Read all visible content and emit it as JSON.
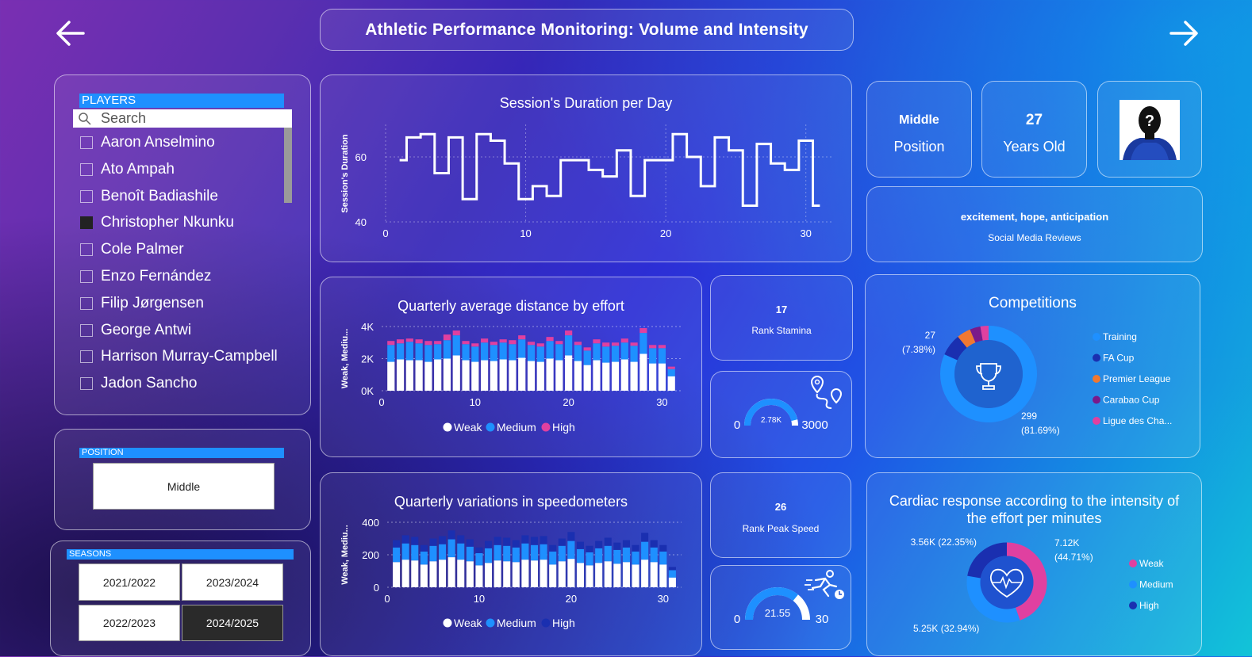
{
  "title": "Athletic Performance Monitoring: Volume and Intensity",
  "nav": {
    "back_icon": "arrow-left-icon",
    "forward_icon": "arrow-right-icon"
  },
  "players": {
    "header": "PLAYERS",
    "search_placeholder": "Search",
    "items": [
      {
        "name": "Aaron Anselmino",
        "checked": false
      },
      {
        "name": "Ato Ampah",
        "checked": false
      },
      {
        "name": "Benoît Badiashile",
        "checked": false
      },
      {
        "name": "Christopher Nkunku",
        "checked": true
      },
      {
        "name": "Cole Palmer",
        "checked": false
      },
      {
        "name": "Enzo Fernández",
        "checked": false
      },
      {
        "name": "Filip Jørgensen",
        "checked": false
      },
      {
        "name": "George Antwi",
        "checked": false
      },
      {
        "name": "Harrison Murray-Campbell",
        "checked": false
      },
      {
        "name": "Jadon Sancho",
        "checked": false
      }
    ]
  },
  "position": {
    "header": "POSITION",
    "value": "Middle"
  },
  "seasons": {
    "header": "SEASONS",
    "items": [
      "2021/2022",
      "2023/2024",
      "2022/2023",
      "2024/2025"
    ],
    "selected": "2024/2025"
  },
  "cards": {
    "position_value": "Middle",
    "position_label": "Position",
    "age_value": "27",
    "age_label": "Years Old",
    "sentiment_value": "excitement, hope, anticipation",
    "sentiment_label": "Social Media Reviews",
    "rank_stamina_value": "17",
    "rank_stamina_label": "Rank Stamina",
    "rank_speed_value": "26",
    "rank_speed_label": "Rank Peak Speed"
  },
  "gauge_stamina": {
    "min": "0",
    "max": "3000",
    "value": 2780,
    "value_label": "2.78K",
    "icon": "route-pin-icon"
  },
  "gauge_speed": {
    "min": "0",
    "max": "30",
    "value": 21.55,
    "value_label": "21.55",
    "icon": "runner-icon"
  },
  "colors": {
    "weak": "#ffffff",
    "medium": "#1e90ff",
    "high": "#e040a0",
    "high_speed": "#1a2fb0"
  },
  "chart_data": [
    {
      "type": "line",
      "title": "Session's Duration per Day",
      "ylabel": "Session's Duration",
      "xlabel": "",
      "xlim": [
        0,
        32
      ],
      "ylim": [
        40,
        70
      ],
      "xticks": [
        0,
        10,
        20,
        30
      ],
      "yticks": [
        40,
        60
      ],
      "step": true,
      "x": [
        1,
        2,
        3,
        4,
        5,
        6,
        7,
        8,
        9,
        10,
        11,
        12,
        13,
        14,
        15,
        16,
        17,
        18,
        19,
        20,
        21,
        22,
        23,
        24,
        25,
        26,
        27,
        28,
        29,
        30,
        31
      ],
      "y": [
        59,
        66,
        67,
        55,
        66,
        47,
        67,
        65,
        58,
        47,
        51,
        48,
        59,
        59,
        56,
        54,
        62,
        48,
        59,
        59,
        67,
        60,
        51,
        66,
        62,
        45,
        64,
        58,
        56,
        65,
        45
      ],
      "color": "#ffffff"
    },
    {
      "type": "bar",
      "title": "Quarterly average distance by effort",
      "ylabel": "Weak, Mediu...",
      "stacked": true,
      "xlim": [
        0,
        32
      ],
      "ylim": [
        0,
        4000
      ],
      "xticks": [
        0,
        10,
        20,
        30
      ],
      "yticks": [
        0,
        2000,
        4000
      ],
      "ytick_labels": [
        "0K",
        "2K",
        "4K"
      ],
      "legend": [
        "Weak",
        "Medium",
        "High"
      ],
      "legend_position": "bottom",
      "x": [
        1,
        2,
        3,
        4,
        5,
        6,
        7,
        8,
        9,
        10,
        11,
        12,
        13,
        14,
        15,
        16,
        17,
        18,
        19,
        20,
        21,
        22,
        23,
        24,
        25,
        26,
        27,
        28,
        29,
        30,
        31
      ],
      "series": [
        {
          "name": "Weak",
          "color": "#ffffff",
          "values": [
            1800,
            1950,
            1900,
            1900,
            1800,
            1950,
            2000,
            2200,
            1900,
            1800,
            1900,
            1850,
            1950,
            1900,
            2050,
            1850,
            1800,
            2000,
            1900,
            2200,
            1850,
            1600,
            1900,
            1750,
            1800,
            1950,
            1800,
            2300,
            1700,
            1700,
            900
          ]
        },
        {
          "name": "Medium",
          "color": "#1e90ff",
          "values": [
            1050,
            1000,
            1150,
            1050,
            1050,
            950,
            1150,
            1250,
            1000,
            950,
            1100,
            1000,
            1050,
            1000,
            1150,
            1000,
            950,
            1100,
            1000,
            1250,
            1000,
            900,
            1050,
            1000,
            1000,
            1050,
            1000,
            1300,
            950,
            950,
            450
          ]
        },
        {
          "name": "High",
          "color": "#e040a0",
          "values": [
            250,
            250,
            200,
            250,
            250,
            200,
            350,
            300,
            200,
            200,
            250,
            200,
            200,
            250,
            250,
            200,
            200,
            250,
            200,
            300,
            200,
            200,
            250,
            250,
            200,
            250,
            200,
            300,
            200,
            200,
            150
          ]
        }
      ]
    },
    {
      "type": "bar",
      "title": "Quarterly variations in speedometers",
      "ylabel": "Weak, Mediu...",
      "stacked": true,
      "xlim": [
        0,
        32
      ],
      "ylim": [
        0,
        400
      ],
      "xticks": [
        0,
        10,
        20,
        30
      ],
      "yticks": [
        0,
        200,
        400
      ],
      "legend": [
        "Weak",
        "Medium",
        "High"
      ],
      "legend_position": "bottom",
      "x": [
        1,
        2,
        3,
        4,
        5,
        6,
        7,
        8,
        9,
        10,
        11,
        12,
        13,
        14,
        15,
        16,
        17,
        18,
        19,
        20,
        21,
        22,
        23,
        24,
        25,
        26,
        27,
        28,
        29,
        30,
        31
      ],
      "series": [
        {
          "name": "Weak",
          "color": "#ffffff",
          "values": [
            155,
            170,
            165,
            140,
            160,
            170,
            185,
            170,
            160,
            135,
            150,
            165,
            160,
            155,
            170,
            165,
            170,
            140,
            160,
            175,
            150,
            135,
            150,
            160,
            145,
            155,
            140,
            170,
            155,
            140,
            60
          ]
        },
        {
          "name": "Medium",
          "color": "#1e90ff",
          "values": [
            90,
            100,
            95,
            80,
            95,
            95,
            110,
            100,
            90,
            75,
            90,
            95,
            95,
            90,
            100,
            95,
            95,
            80,
            95,
            110,
            85,
            80,
            90,
            95,
            85,
            90,
            80,
            110,
            90,
            80,
            45
          ]
        },
        {
          "name": "High",
          "color": "#1a2fb0",
          "values": [
            45,
            50,
            50,
            40,
            45,
            50,
            55,
            50,
            45,
            35,
            45,
            50,
            50,
            45,
            50,
            50,
            50,
            40,
            45,
            55,
            45,
            40,
            45,
            50,
            45,
            45,
            40,
            55,
            45,
            40,
            20
          ]
        }
      ]
    },
    {
      "type": "pie",
      "title": "Competitions",
      "donut": true,
      "icon": "trophy-icon",
      "categories": [
        "Training",
        "FA Cup",
        "Premier League",
        "Carabao Cup",
        "Ligue des Cha..."
      ],
      "values": [
        299,
        27,
        17,
        13,
        10
      ],
      "colors": [
        "#1e90ff",
        "#1a2fb0",
        "#f07830",
        "#7a1a8a",
        "#e040a0"
      ],
      "labels": [
        {
          "text": "299",
          "pct": "(81.69%)"
        },
        {
          "text": "27",
          "pct": "(7.38%)"
        }
      ],
      "legend_position": "right"
    },
    {
      "type": "pie",
      "title": "Cardiac response according to the intensity of the effort per minutes",
      "donut": true,
      "icon": "heart-pulse-icon",
      "categories": [
        "Weak",
        "Medium",
        "High"
      ],
      "values": [
        7120,
        5250,
        3560
      ],
      "colors": [
        "#e040a0",
        "#1e90ff",
        "#1a2fb0"
      ],
      "labels": [
        {
          "text": "7.12K",
          "pct": "(44.71%)"
        },
        {
          "text": "5.25K (32.94%)"
        },
        {
          "text": "3.56K (22.35%)"
        }
      ],
      "legend_position": "right"
    }
  ]
}
